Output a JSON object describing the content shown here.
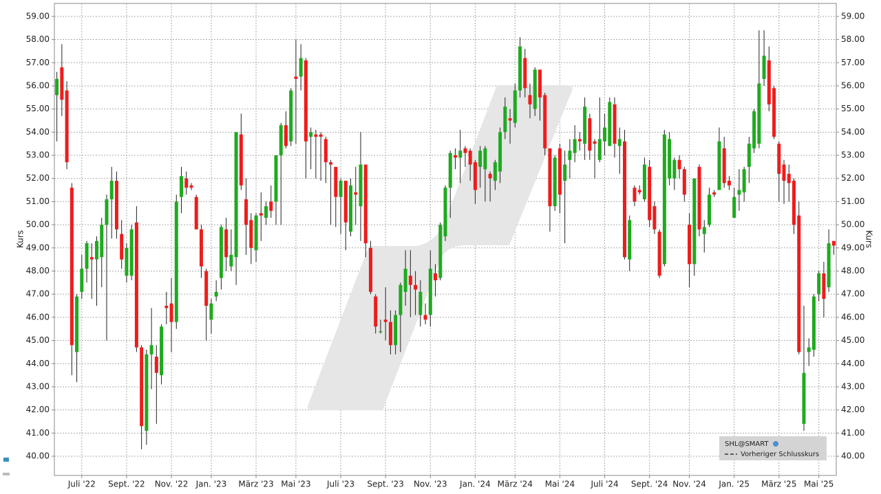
{
  "chart_data": {
    "type": "candlestick",
    "y_label": "Kurs",
    "legend": {
      "symbol": "SHL@SMART",
      "previous_close": "Vorheriger Schlusskurs"
    },
    "up_color": "#1faa1f",
    "down_color": "#ee1c1c",
    "grid": true,
    "ylim": [
      39.17,
      59.56
    ],
    "yticks": [
      {
        "value": 40,
        "label": "40.00"
      },
      {
        "value": 41,
        "label": "41.00"
      },
      {
        "value": 42,
        "label": "42.00"
      },
      {
        "value": 43,
        "label": "43.00"
      },
      {
        "value": 44,
        "label": "44.00"
      },
      {
        "value": 45,
        "label": "45.00"
      },
      {
        "value": 46,
        "label": "46.00"
      },
      {
        "value": 47,
        "label": "47.00"
      },
      {
        "value": 48,
        "label": "48.00"
      },
      {
        "value": 49,
        "label": "49.00"
      },
      {
        "value": 50,
        "label": "50.00"
      },
      {
        "value": 51,
        "label": "51.00"
      },
      {
        "value": 52,
        "label": "52.00"
      },
      {
        "value": 53,
        "label": "53.00"
      },
      {
        "value": 54,
        "label": "54.00"
      },
      {
        "value": 55,
        "label": "55.00"
      },
      {
        "value": 56,
        "label": "56.00"
      },
      {
        "value": 57,
        "label": "57.00"
      },
      {
        "value": 58,
        "label": "58.00"
      },
      {
        "value": 59,
        "label": "59.00"
      }
    ],
    "categories": [
      null,
      null,
      null,
      null,
      null,
      "Juli '22",
      null,
      null,
      null,
      null,
      null,
      null,
      null,
      null,
      "Sept. '22",
      null,
      null,
      null,
      null,
      null,
      null,
      null,
      null,
      "Nov. '22",
      null,
      null,
      null,
      null,
      null,
      null,
      null,
      "Jan. '23",
      null,
      null,
      null,
      null,
      null,
      null,
      null,
      null,
      "März '23",
      null,
      null,
      null,
      null,
      null,
      null,
      null,
      "Mai '23",
      null,
      null,
      null,
      null,
      null,
      null,
      null,
      null,
      "Juli '23",
      null,
      null,
      null,
      null,
      null,
      null,
      null,
      null,
      "Sept. '23",
      null,
      null,
      null,
      null,
      null,
      null,
      null,
      null,
      "Nov. '23",
      null,
      null,
      null,
      null,
      null,
      null,
      null,
      null,
      "Jan. '24",
      null,
      null,
      null,
      null,
      null,
      null,
      null,
      "März '24",
      null,
      null,
      null,
      null,
      null,
      null,
      null,
      null,
      "Mai '24",
      null,
      null,
      null,
      null,
      null,
      null,
      null,
      null,
      "Juli '24",
      null,
      null,
      null,
      null,
      null,
      null,
      null,
      null,
      "Sept. '24",
      null,
      null,
      null,
      null,
      null,
      null,
      null,
      "Nov. '24",
      null,
      null,
      null,
      null,
      null,
      null,
      null,
      null,
      "Jan. '25",
      null,
      null,
      null,
      null,
      null,
      null,
      null,
      null,
      "März '25",
      null,
      null,
      null,
      null,
      null,
      null,
      null,
      "Mai '25",
      null,
      null,
      null
    ],
    "candles": [
      {
        "open": 55.6,
        "high": 56.6,
        "low": 53.6,
        "close": 56.3
      },
      {
        "open": 56.8,
        "high": 57.8,
        "low": 54.7,
        "close": 55.4
      },
      {
        "open": 55.8,
        "high": 56.2,
        "low": 52.4,
        "close": 52.7
      },
      {
        "open": 51.6,
        "high": 51.8,
        "low": 43.5,
        "close": 44.8
      },
      {
        "open": 44.5,
        "high": 47.0,
        "low": 43.2,
        "close": 46.9
      },
      {
        "open": 47.1,
        "high": 48.7,
        "low": 46.8,
        "close": 48.1
      },
      {
        "open": 48.1,
        "high": 49.3,
        "low": 47.5,
        "close": 49.2
      },
      {
        "open": 48.6,
        "high": 49.2,
        "low": 46.8,
        "close": 48.5
      },
      {
        "open": 48.5,
        "high": 49.5,
        "low": 46.5,
        "close": 49.3
      },
      {
        "open": 48.6,
        "high": 50.3,
        "low": 47.3,
        "close": 50.0
      },
      {
        "open": 50.0,
        "high": 51.3,
        "low": 45.0,
        "close": 51.1
      },
      {
        "open": 51.1,
        "high": 52.5,
        "low": 49.4,
        "close": 51.9
      },
      {
        "open": 51.9,
        "high": 52.3,
        "low": 49.4,
        "close": 49.8
      },
      {
        "open": 49.6,
        "high": 50.2,
        "low": 48.1,
        "close": 48.5
      },
      {
        "open": 47.8,
        "high": 49.2,
        "low": 47.5,
        "close": 49.0
      },
      {
        "open": 47.8,
        "high": 50.0,
        "low": 47.6,
        "close": 49.8
      },
      {
        "open": 50.1,
        "high": 50.8,
        "low": 44.5,
        "close": 44.7
      },
      {
        "open": 44.7,
        "high": 44.8,
        "low": 40.3,
        "close": 41.3
      },
      {
        "open": 41.1,
        "high": 44.6,
        "low": 40.5,
        "close": 44.4
      },
      {
        "open": 44.4,
        "high": 46.4,
        "low": 42.9,
        "close": 44.8
      },
      {
        "open": 44.3,
        "high": 44.8,
        "low": 41.4,
        "close": 43.6
      },
      {
        "open": 43.5,
        "high": 45.7,
        "low": 43.1,
        "close": 45.6
      },
      {
        "open": 46.5,
        "high": 47.1,
        "low": 45.7,
        "close": 46.4
      },
      {
        "open": 46.6,
        "high": 47.7,
        "low": 44.5,
        "close": 45.8
      },
      {
        "open": 45.8,
        "high": 51.3,
        "low": 45.5,
        "close": 51.0
      },
      {
        "open": 51.2,
        "high": 52.5,
        "low": 50.5,
        "close": 52.1
      },
      {
        "open": 52.0,
        "high": 52.3,
        "low": 51.3,
        "close": 51.6
      },
      {
        "open": 51.7,
        "high": 51.8,
        "low": 51.5,
        "close": 51.6
      },
      {
        "open": 51.2,
        "high": 51.3,
        "low": 49.8,
        "close": 49.8
      },
      {
        "open": 49.8,
        "high": 50.0,
        "low": 47.7,
        "close": 48.2
      },
      {
        "open": 48.0,
        "high": 48.1,
        "low": 45.0,
        "close": 46.5
      },
      {
        "open": 45.9,
        "high": 46.8,
        "low": 45.3,
        "close": 46.6
      },
      {
        "open": 46.9,
        "high": 47.6,
        "low": 46.7,
        "close": 47.1
      },
      {
        "open": 47.7,
        "high": 50.0,
        "low": 47.2,
        "close": 49.9
      },
      {
        "open": 49.8,
        "high": 50.3,
        "low": 48.0,
        "close": 48.6
      },
      {
        "open": 48.2,
        "high": 49.8,
        "low": 48.0,
        "close": 48.7
      },
      {
        "open": 48.6,
        "high": 54.0,
        "low": 47.4,
        "close": 54.0
      },
      {
        "open": 53.9,
        "high": 54.8,
        "low": 51.5,
        "close": 51.7
      },
      {
        "open": 51.1,
        "high": 52.0,
        "low": 48.7,
        "close": 50.0
      },
      {
        "open": 50.2,
        "high": 50.5,
        "low": 48.3,
        "close": 49.0
      },
      {
        "open": 48.9,
        "high": 50.5,
        "low": 48.4,
        "close": 50.4
      },
      {
        "open": 50.5,
        "high": 51.4,
        "low": 49.3,
        "close": 50.4
      },
      {
        "open": 50.3,
        "high": 51.0,
        "low": 50.0,
        "close": 50.8
      },
      {
        "open": 51.0,
        "high": 51.7,
        "low": 50.3,
        "close": 50.6
      },
      {
        "open": 51.0,
        "high": 53.0,
        "low": 50.0,
        "close": 53.0
      },
      {
        "open": 53.0,
        "high": 54.4,
        "low": 50.0,
        "close": 54.3
      },
      {
        "open": 54.3,
        "high": 54.9,
        "low": 53.3,
        "close": 53.4
      },
      {
        "open": 53.6,
        "high": 55.9,
        "low": 53.4,
        "close": 55.8
      },
      {
        "open": 56.4,
        "high": 58.0,
        "low": 53.5,
        "close": 56.3
      },
      {
        "open": 56.4,
        "high": 57.8,
        "low": 55.8,
        "close": 57.2
      },
      {
        "open": 57.1,
        "high": 57.2,
        "low": 52.0,
        "close": 53.6
      },
      {
        "open": 53.8,
        "high": 54.2,
        "low": 52.4,
        "close": 54.0
      },
      {
        "open": 53.9,
        "high": 54.1,
        "low": 52.0,
        "close": 53.8
      },
      {
        "open": 53.9,
        "high": 54.0,
        "low": 51.9,
        "close": 53.8
      },
      {
        "open": 53.7,
        "high": 53.8,
        "low": 51.8,
        "close": 52.7
      },
      {
        "open": 52.7,
        "high": 52.8,
        "low": 50.0,
        "close": 52.6
      },
      {
        "open": 52.5,
        "high": 52.5,
        "low": 49.9,
        "close": 51.2
      },
      {
        "open": 51.2,
        "high": 52.0,
        "low": 49.6,
        "close": 51.9
      },
      {
        "open": 51.9,
        "high": 51.9,
        "low": 48.9,
        "close": 50.1
      },
      {
        "open": 49.7,
        "high": 52.0,
        "low": 49.5,
        "close": 51.7
      },
      {
        "open": 51.4,
        "high": 52.5,
        "low": 50.0,
        "close": 51.3
      },
      {
        "open": 50.8,
        "high": 54.0,
        "low": 49.3,
        "close": 52.6
      },
      {
        "open": 52.6,
        "high": 52.6,
        "low": 48.6,
        "close": 49.2
      },
      {
        "open": 49.0,
        "high": 49.3,
        "low": 47.0,
        "close": 47.1
      },
      {
        "open": 46.9,
        "high": 47.0,
        "low": 45.3,
        "close": 45.6
      },
      {
        "open": 45.4,
        "high": 45.9,
        "low": 45.3,
        "close": 45.4
      },
      {
        "open": 45.9,
        "high": 47.3,
        "low": 45.0,
        "close": 45.8
      },
      {
        "open": 45.8,
        "high": 46.3,
        "low": 44.4,
        "close": 44.8
      },
      {
        "open": 44.8,
        "high": 46.3,
        "low": 44.4,
        "close": 46.1
      },
      {
        "open": 46.1,
        "high": 47.5,
        "low": 44.5,
        "close": 47.4
      },
      {
        "open": 47.1,
        "high": 48.9,
        "low": 46.5,
        "close": 48.1
      },
      {
        "open": 47.8,
        "high": 48.9,
        "low": 46.0,
        "close": 47.4
      },
      {
        "open": 47.4,
        "high": 48.0,
        "low": 46.1,
        "close": 47.2
      },
      {
        "open": 46.1,
        "high": 47.6,
        "low": 45.6,
        "close": 47.1
      },
      {
        "open": 46.1,
        "high": 46.6,
        "low": 45.7,
        "close": 45.9
      },
      {
        "open": 46.1,
        "high": 48.9,
        "low": 45.6,
        "close": 48.1
      },
      {
        "open": 47.9,
        "high": 48.3,
        "low": 46.9,
        "close": 47.6
      },
      {
        "open": 47.7,
        "high": 50.1,
        "low": 47.6,
        "close": 50.0
      },
      {
        "open": 49.5,
        "high": 51.7,
        "low": 49.3,
        "close": 51.6
      },
      {
        "open": 51.6,
        "high": 53.2,
        "low": 50.3,
        "close": 53.1
      },
      {
        "open": 53.0,
        "high": 53.3,
        "low": 52.4,
        "close": 52.9
      },
      {
        "open": 52.9,
        "high": 54.1,
        "low": 51.8,
        "close": 53.2
      },
      {
        "open": 53.3,
        "high": 53.4,
        "low": 52.5,
        "close": 53.1
      },
      {
        "open": 53.2,
        "high": 53.3,
        "low": 51.9,
        "close": 52.6
      },
      {
        "open": 52.7,
        "high": 52.8,
        "low": 50.9,
        "close": 51.5
      },
      {
        "open": 52.5,
        "high": 53.4,
        "low": 51.6,
        "close": 53.2
      },
      {
        "open": 52.4,
        "high": 53.4,
        "low": 51.0,
        "close": 53.3
      },
      {
        "open": 52.2,
        "high": 52.3,
        "low": 51.0,
        "close": 52.0
      },
      {
        "open": 51.9,
        "high": 52.8,
        "low": 51.5,
        "close": 52.7
      },
      {
        "open": 52.3,
        "high": 54.2,
        "low": 51.8,
        "close": 54.0
      },
      {
        "open": 54.0,
        "high": 55.5,
        "low": 53.7,
        "close": 55.1
      },
      {
        "open": 54.6,
        "high": 55.0,
        "low": 53.5,
        "close": 54.5
      },
      {
        "open": 54.4,
        "high": 56.1,
        "low": 54.2,
        "close": 55.8
      },
      {
        "open": 55.8,
        "high": 58.1,
        "low": 55.5,
        "close": 57.7
      },
      {
        "open": 57.2,
        "high": 57.6,
        "low": 55.5,
        "close": 55.9
      },
      {
        "open": 55.6,
        "high": 56.1,
        "low": 54.6,
        "close": 55.2
      },
      {
        "open": 55.0,
        "high": 56.8,
        "low": 54.7,
        "close": 56.7
      },
      {
        "open": 56.7,
        "high": 56.7,
        "low": 54.5,
        "close": 55.5
      },
      {
        "open": 55.6,
        "high": 55.7,
        "low": 53.0,
        "close": 53.3
      },
      {
        "open": 53.3,
        "high": 53.3,
        "low": 49.7,
        "close": 50.8
      },
      {
        "open": 50.8,
        "high": 53.0,
        "low": 50.6,
        "close": 52.9
      },
      {
        "open": 53.3,
        "high": 53.5,
        "low": 50.5,
        "close": 51.3
      },
      {
        "open": 51.9,
        "high": 53.2,
        "low": 49.2,
        "close": 52.6
      },
      {
        "open": 52.8,
        "high": 53.7,
        "low": 52.0,
        "close": 53.2
      },
      {
        "open": 53.1,
        "high": 54.3,
        "low": 52.7,
        "close": 53.7
      },
      {
        "open": 53.7,
        "high": 54.0,
        "low": 53.2,
        "close": 53.6
      },
      {
        "open": 53.5,
        "high": 55.5,
        "low": 52.8,
        "close": 55.1
      },
      {
        "open": 54.6,
        "high": 54.8,
        "low": 52.8,
        "close": 53.2
      },
      {
        "open": 53.6,
        "high": 53.7,
        "low": 52.0,
        "close": 53.5
      },
      {
        "open": 52.8,
        "high": 55.5,
        "low": 52.7,
        "close": 53.7
      },
      {
        "open": 53.6,
        "high": 54.8,
        "low": 53.0,
        "close": 54.2
      },
      {
        "open": 53.4,
        "high": 55.5,
        "low": 53.4,
        "close": 55.3
      },
      {
        "open": 55.2,
        "high": 55.5,
        "low": 52.9,
        "close": 53.5
      },
      {
        "open": 53.4,
        "high": 54.2,
        "low": 52.2,
        "close": 53.7
      },
      {
        "open": 53.6,
        "high": 54.1,
        "low": 48.5,
        "close": 48.6
      },
      {
        "open": 48.5,
        "high": 50.4,
        "low": 48.0,
        "close": 50.2
      },
      {
        "open": 51.6,
        "high": 51.7,
        "low": 50.8,
        "close": 51.0
      },
      {
        "open": 51.5,
        "high": 51.7,
        "low": 51.3,
        "close": 51.4
      },
      {
        "open": 51.1,
        "high": 52.9,
        "low": 51.0,
        "close": 52.6
      },
      {
        "open": 52.5,
        "high": 52.8,
        "low": 49.9,
        "close": 50.2
      },
      {
        "open": 50.8,
        "high": 51.0,
        "low": 49.6,
        "close": 49.8
      },
      {
        "open": 49.7,
        "high": 49.8,
        "low": 47.7,
        "close": 47.8
      },
      {
        "open": 48.3,
        "high": 54.1,
        "low": 48.2,
        "close": 53.9
      },
      {
        "open": 52.0,
        "high": 54.0,
        "low": 51.7,
        "close": 53.7
      },
      {
        "open": 52.0,
        "high": 52.9,
        "low": 51.5,
        "close": 52.8
      },
      {
        "open": 52.8,
        "high": 53.0,
        "low": 52.0,
        "close": 52.4
      },
      {
        "open": 52.4,
        "high": 52.5,
        "low": 51.0,
        "close": 51.3
      },
      {
        "open": 50.0,
        "high": 50.5,
        "low": 47.3,
        "close": 48.3
      },
      {
        "open": 48.3,
        "high": 52.0,
        "low": 47.8,
        "close": 52.0
      },
      {
        "open": 52.5,
        "high": 52.6,
        "low": 49.5,
        "close": 49.8
      },
      {
        "open": 49.6,
        "high": 50.2,
        "low": 48.8,
        "close": 49.9
      },
      {
        "open": 50.0,
        "high": 51.6,
        "low": 49.9,
        "close": 51.3
      },
      {
        "open": 51.4,
        "high": 51.5,
        "low": 51.2,
        "close": 51.3
      },
      {
        "open": 51.5,
        "high": 54.2,
        "low": 51.5,
        "close": 53.6
      },
      {
        "open": 53.3,
        "high": 53.8,
        "low": 51.6,
        "close": 51.8
      },
      {
        "open": 51.9,
        "high": 52.1,
        "low": 51.5,
        "close": 51.7
      },
      {
        "open": 50.3,
        "high": 51.6,
        "low": 50.3,
        "close": 51.2
      },
      {
        "open": 51.3,
        "high": 52.4,
        "low": 50.6,
        "close": 51.5
      },
      {
        "open": 51.4,
        "high": 52.5,
        "low": 51.0,
        "close": 52.4
      },
      {
        "open": 52.5,
        "high": 53.8,
        "low": 51.8,
        "close": 53.5
      },
      {
        "open": 53.3,
        "high": 55.0,
        "low": 53.1,
        "close": 54.9
      },
      {
        "open": 53.5,
        "high": 58.4,
        "low": 53.3,
        "close": 56.1
      },
      {
        "open": 56.3,
        "high": 58.4,
        "low": 56.0,
        "close": 57.3
      },
      {
        "open": 57.1,
        "high": 57.7,
        "low": 54.9,
        "close": 55.2
      },
      {
        "open": 55.9,
        "high": 56.0,
        "low": 53.7,
        "close": 53.8
      },
      {
        "open": 53.5,
        "high": 53.6,
        "low": 51.0,
        "close": 52.2
      },
      {
        "open": 52.6,
        "high": 52.8,
        "low": 50.9,
        "close": 51.9
      },
      {
        "open": 52.2,
        "high": 52.6,
        "low": 51.0,
        "close": 51.8
      },
      {
        "open": 51.9,
        "high": 52.0,
        "low": 49.6,
        "close": 50.0
      },
      {
        "open": 50.4,
        "high": 51.0,
        "low": 44.4,
        "close": 44.5
      },
      {
        "open": 41.4,
        "high": 46.5,
        "low": 41.1,
        "close": 43.6
      },
      {
        "open": 44.5,
        "high": 45.1,
        "low": 43.9,
        "close": 44.7
      },
      {
        "open": 44.6,
        "high": 47.0,
        "low": 44.3,
        "close": 46.9
      },
      {
        "open": 47.0,
        "high": 48.0,
        "low": 46.7,
        "close": 47.9
      },
      {
        "open": 47.9,
        "high": 48.4,
        "low": 46.0,
        "close": 46.8
      },
      {
        "open": 47.3,
        "high": 49.8,
        "low": 47.1,
        "close": 49.2
      },
      {
        "open": 49.3,
        "high": 49.3,
        "low": 48.7,
        "close": 49.1
      }
    ]
  }
}
